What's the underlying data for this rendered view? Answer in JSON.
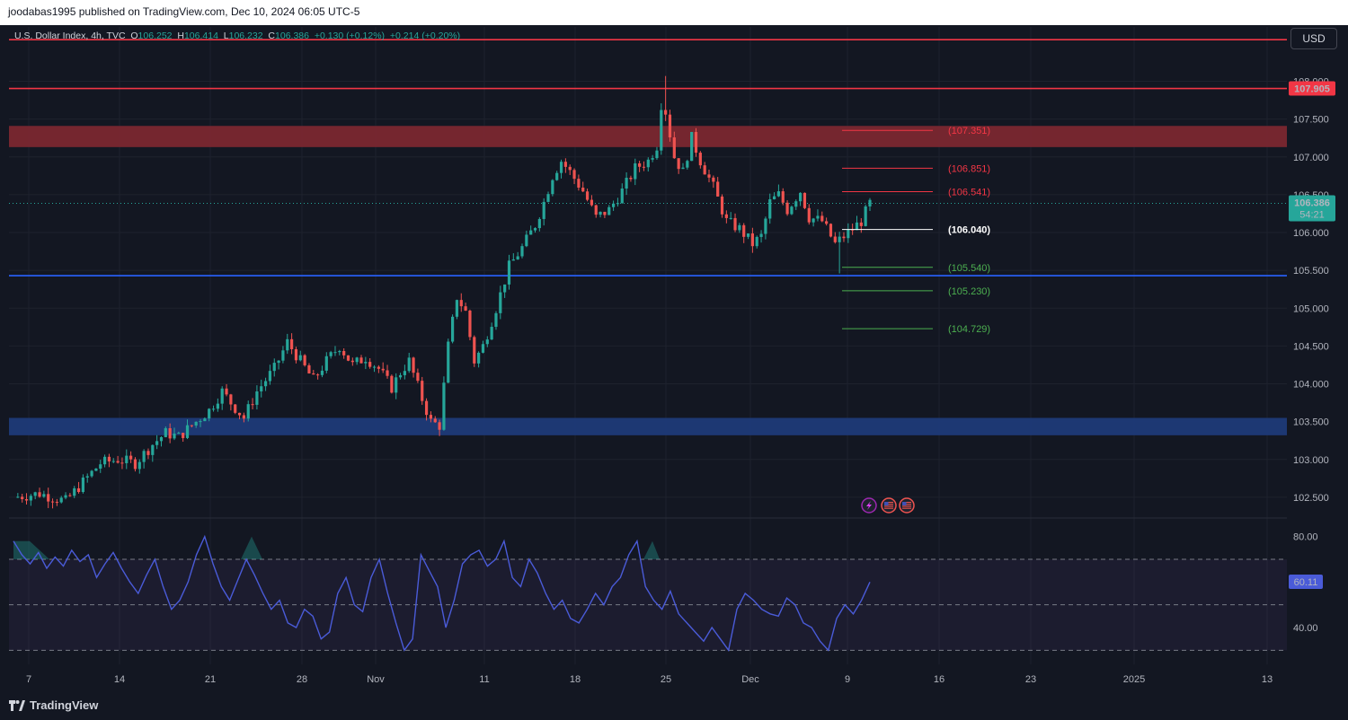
{
  "header": {
    "publisher": "joodabas1995 published on TradingView.com, Dec 10, 2024 06:05 UTC-5"
  },
  "legend": {
    "symbol": "U.S. Dollar Index, 4h, TVC",
    "o_label": "O",
    "o_value": "106.252",
    "h_label": "H",
    "h_value": "106.414",
    "l_label": "L",
    "l_value": "106.232",
    "c_label": "C",
    "c_value": "106.386",
    "change": "+0.130 (+0.12%)",
    "change2": "+0.214 (+0.20%)"
  },
  "currency_button": "USD",
  "footer": {
    "brand": "TradingView"
  },
  "colors": {
    "background": "#131722",
    "up": "#26a69a",
    "down": "#ef5350",
    "resistance_line": "#f23645",
    "support_line": "#2962ff",
    "resistance_zone": "#7a2730",
    "support_zone": "#1e3a78",
    "rsi": "#4a5bd8"
  },
  "chart_data": {
    "type": "candlestick",
    "title": "U.S. Dollar Index, 4h, TVC",
    "price_axis": {
      "ticks": [
        "108.000",
        "107.500",
        "107.000",
        "106.500",
        "106.000",
        "105.500",
        "105.000",
        "104.500",
        "104.000",
        "103.500",
        "103.000",
        "102.500"
      ],
      "range": [
        102.25,
        108.6
      ]
    },
    "x_axis": {
      "ticks": [
        "7",
        "14",
        "21",
        "28",
        "Nov",
        "11",
        "18",
        "25",
        "Dec",
        "9",
        "16",
        "23",
        "2025",
        "13"
      ]
    },
    "price_badges": {
      "resistance": "107.905",
      "current": "106.386",
      "countdown": "54:21"
    },
    "horizontal_lines": [
      {
        "kind": "resistance",
        "value": 107.905
      },
      {
        "kind": "top",
        "value": 108.55
      },
      {
        "kind": "support",
        "value": 105.43
      }
    ],
    "zones": [
      {
        "kind": "resistance",
        "from": 107.13,
        "to": 107.41
      },
      {
        "kind": "support",
        "from": 103.32,
        "to": 103.55
      }
    ],
    "levels": [
      {
        "label": "(107.351)",
        "value": 107.351,
        "color": "#f23645"
      },
      {
        "label": "(106.851)",
        "value": 106.851,
        "color": "#f23645"
      },
      {
        "label": "(106.541)",
        "value": 106.541,
        "color": "#f23645"
      },
      {
        "label": "(106.040)",
        "value": 106.04,
        "color": "#ffffff"
      },
      {
        "label": "(105.540)",
        "value": 105.54,
        "color": "#4caf50"
      },
      {
        "label": "(105.230)",
        "value": 105.23,
        "color": "#4caf50"
      },
      {
        "label": "(104.729)",
        "value": 104.729,
        "color": "#4caf50"
      }
    ],
    "price_path": [
      [
        0,
        102.5
      ],
      [
        6,
        102.55
      ],
      [
        12,
        102.45
      ],
      [
        16,
        102.7
      ],
      [
        20,
        102.95
      ],
      [
        24,
        103.0
      ],
      [
        28,
        102.95
      ],
      [
        32,
        103.2
      ],
      [
        35,
        103.35
      ],
      [
        38,
        103.3
      ],
      [
        42,
        103.5
      ],
      [
        45,
        103.65
      ],
      [
        48,
        103.9
      ],
      [
        50,
        103.75
      ],
      [
        53,
        103.55
      ],
      [
        56,
        103.9
      ],
      [
        60,
        104.2
      ],
      [
        63,
        104.55
      ],
      [
        66,
        104.3
      ],
      [
        69,
        104.05
      ],
      [
        72,
        104.3
      ],
      [
        75,
        104.5
      ],
      [
        78,
        104.25
      ],
      [
        81,
        104.35
      ],
      [
        84,
        104.2
      ],
      [
        87,
        103.95
      ],
      [
        89,
        104.15
      ],
      [
        91,
        104.3
      ],
      [
        94,
        103.8
      ],
      [
        96,
        103.5
      ],
      [
        98,
        103.45
      ],
      [
        100,
        104.5
      ],
      [
        102,
        105.15
      ],
      [
        104,
        104.95
      ],
      [
        106,
        104.3
      ],
      [
        108,
        104.5
      ],
      [
        111,
        105.0
      ],
      [
        114,
        105.55
      ],
      [
        117,
        105.8
      ],
      [
        120,
        106.1
      ],
      [
        122,
        106.4
      ],
      [
        124,
        106.75
      ],
      [
        126,
        106.95
      ],
      [
        128,
        106.8
      ],
      [
        131,
        106.55
      ],
      [
        134,
        106.2
      ],
      [
        137,
        106.3
      ],
      [
        140,
        106.55
      ],
      [
        143,
        106.85
      ],
      [
        146,
        106.95
      ],
      [
        148,
        107.15
      ],
      [
        149,
        107.7
      ],
      [
        150,
        107.6
      ],
      [
        152,
        107.0
      ],
      [
        154,
        106.8
      ],
      [
        156,
        107.25
      ],
      [
        158,
        106.95
      ],
      [
        161,
        106.6
      ],
      [
        164,
        106.15
      ],
      [
        167,
        106.05
      ],
      [
        170,
        105.85
      ],
      [
        172,
        105.95
      ],
      [
        174,
        106.4
      ],
      [
        176,
        106.5
      ],
      [
        178,
        106.3
      ],
      [
        181,
        106.55
      ],
      [
        183,
        106.2
      ],
      [
        186,
        106.15
      ],
      [
        189,
        105.85
      ],
      [
        191,
        105.95
      ],
      [
        193,
        106.05
      ],
      [
        195,
        106.15
      ],
      [
        197,
        106.386
      ]
    ],
    "rsi": {
      "ticks": [
        "80.00",
        "40.00"
      ],
      "value_badge": "60.11",
      "upper": 70,
      "middle": 50,
      "lower": 30,
      "range": [
        25,
        85
      ],
      "values": [
        78,
        72,
        68,
        73,
        66,
        71,
        67,
        74,
        69,
        72,
        62,
        68,
        73,
        66,
        60,
        55,
        63,
        70,
        58,
        48,
        52,
        60,
        72,
        80,
        68,
        58,
        52,
        61,
        70,
        63,
        55,
        48,
        52,
        42,
        40,
        48,
        45,
        35,
        38,
        55,
        62,
        50,
        47,
        62,
        70,
        55,
        42,
        30,
        35,
        72,
        65,
        58,
        40,
        52,
        68,
        72,
        74,
        67,
        70,
        78,
        62,
        58,
        70,
        64,
        55,
        48,
        52,
        44,
        42,
        48,
        55,
        50,
        58,
        62,
        72,
        78,
        58,
        52,
        48,
        56,
        46,
        42,
        38,
        34,
        40,
        35,
        30,
        48,
        55,
        52,
        48,
        46,
        45,
        53,
        50,
        42,
        40,
        34,
        30,
        44,
        50,
        46,
        52,
        60
      ]
    },
    "event_icons": [
      "flash-icon",
      "us-flag-icon",
      "us-flag-icon"
    ]
  }
}
